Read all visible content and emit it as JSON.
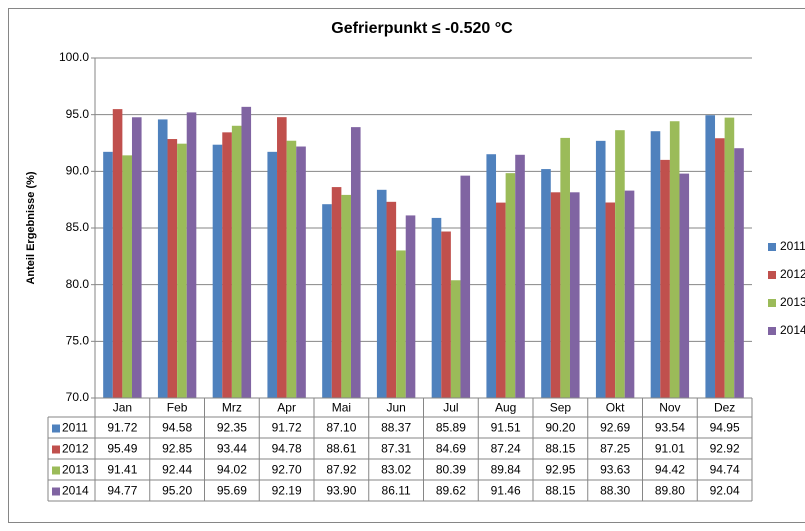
{
  "chart_data": {
    "type": "bar",
    "title": "Gefrierpunkt ≤  -0.520 °C",
    "y_label": "Anteil Ergebnisse (%)",
    "categories": [
      "Jan",
      "Feb",
      "Mrz",
      "Apr",
      "Mai",
      "Jun",
      "Jul",
      "Aug",
      "Sep",
      "Okt",
      "Nov",
      "Dez"
    ],
    "series": [
      {
        "name": "2011",
        "color": "#4f81bd",
        "values": [
          91.72,
          94.58,
          92.35,
          91.72,
          87.1,
          88.37,
          85.89,
          91.51,
          90.2,
          92.69,
          93.54,
          94.95
        ],
        "value_labels": [
          "91.72",
          "94.58",
          "92.35",
          "91.72",
          "87.10",
          "88.37",
          "85.89",
          "91.51",
          "90.20",
          "92.69",
          "93.54",
          "94.95"
        ]
      },
      {
        "name": "2012",
        "color": "#c0504d",
        "values": [
          95.49,
          92.85,
          93.44,
          94.78,
          88.61,
          87.31,
          84.69,
          87.24,
          88.15,
          87.25,
          91.01,
          92.92
        ],
        "value_labels": [
          "95.49",
          "92.85",
          "93.44",
          "94.78",
          "88.61",
          "87.31",
          "84.69",
          "87.24",
          "88.15",
          "87.25",
          "91.01",
          "92.92"
        ]
      },
      {
        "name": "2013",
        "color": "#9bbb59",
        "values": [
          91.41,
          92.44,
          94.02,
          92.7,
          87.92,
          83.02,
          80.39,
          89.84,
          92.95,
          93.63,
          94.42,
          94.74
        ],
        "value_labels": [
          "91.41",
          "92.44",
          "94.02",
          "92.70",
          "87.92",
          "83.02",
          "80.39",
          "89.84",
          "92.95",
          "93.63",
          "94.42",
          "94.74"
        ]
      },
      {
        "name": "2014",
        "color": "#8064a2",
        "values": [
          94.77,
          95.2,
          95.69,
          92.19,
          93.9,
          86.11,
          89.62,
          91.46,
          88.15,
          88.3,
          89.8,
          92.04
        ],
        "value_labels": [
          "94.77",
          "95.20",
          "95.69",
          "92.19",
          "93.90",
          "86.11",
          "89.62",
          "91.46",
          "88.15",
          "88.30",
          "89.80",
          "92.04"
        ]
      }
    ],
    "ylim": [
      70,
      100
    ],
    "yticks": [
      {
        "value": 70,
        "label": "70.0"
      },
      {
        "value": 75,
        "label": "75.0"
      },
      {
        "value": 80,
        "label": "80.0"
      },
      {
        "value": 85,
        "label": "85.0"
      },
      {
        "value": 90,
        "label": "90.0"
      },
      {
        "value": 95,
        "label": "95.0"
      },
      {
        "value": 100,
        "label": "100.0"
      }
    ],
    "grid": true,
    "legend": "right",
    "data_table": true
  }
}
